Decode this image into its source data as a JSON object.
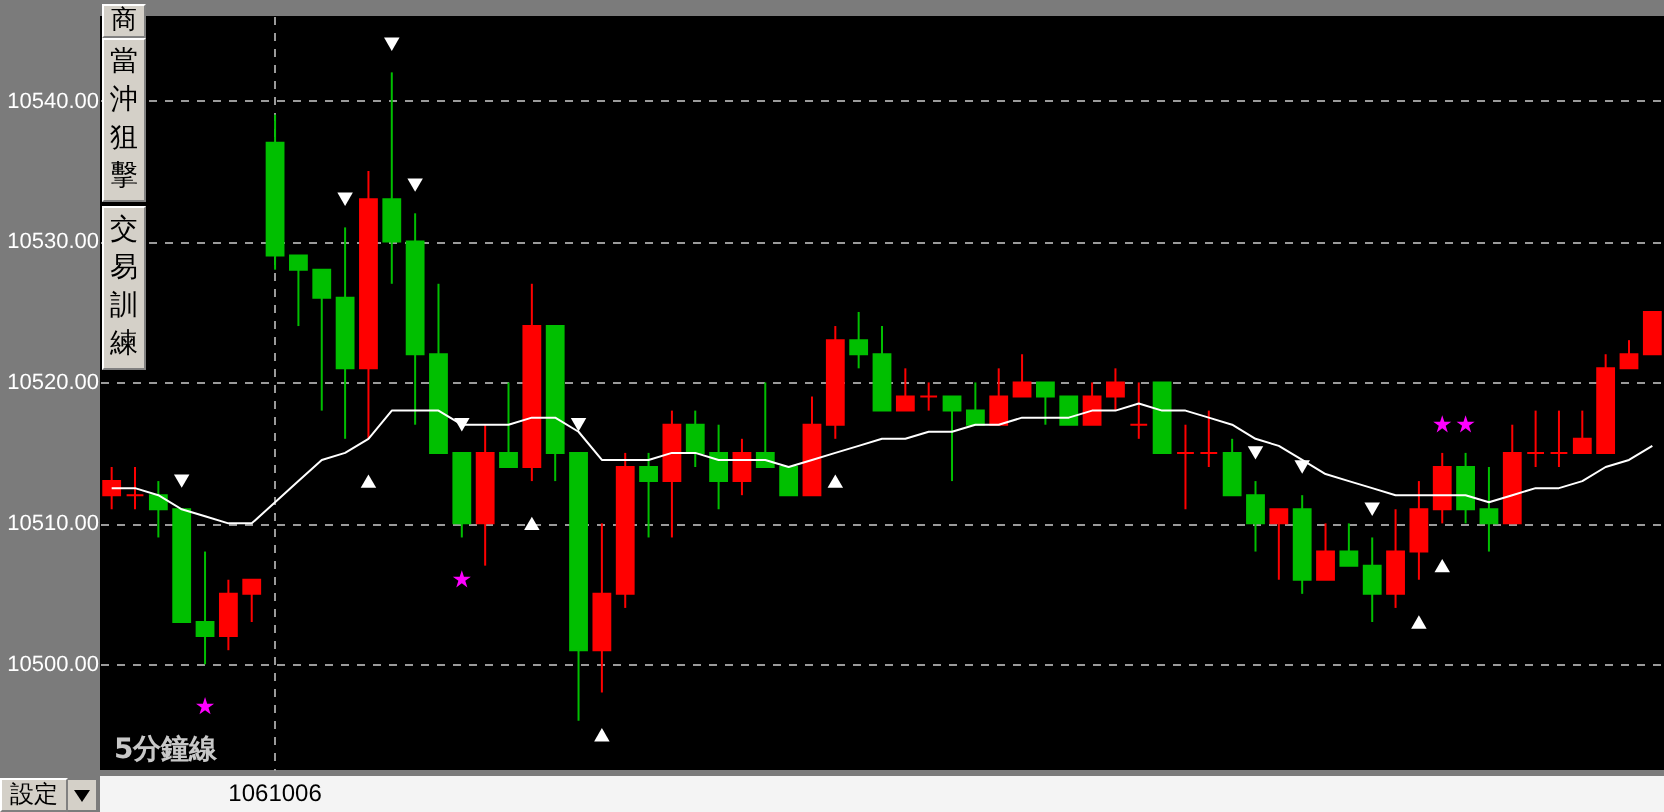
{
  "chart_data": {
    "type": "candlestick",
    "annotations": [
      "5分鐘線",
      "商",
      "當沖狙擊",
      "交易訓練",
      "設定"
    ],
    "categories": [
      null,
      null,
      null,
      null,
      null,
      null,
      null,
      "1061006",
      null,
      null,
      null,
      null,
      null,
      null,
      null,
      null,
      null,
      null,
      null,
      null,
      null,
      null,
      null,
      null,
      null,
      null,
      null,
      null,
      null,
      null,
      null,
      null,
      null,
      null,
      null,
      null,
      null,
      null,
      null,
      null,
      null,
      null,
      null,
      null,
      null,
      null,
      null,
      null,
      null,
      null,
      null,
      null,
      null,
      null,
      null,
      null,
      null,
      null,
      null,
      null,
      null,
      null,
      null,
      null,
      null,
      null,
      null
    ],
    "ohlc": [
      [
        10512,
        10514,
        10511,
        10513
      ],
      [
        10512,
        10514,
        10511,
        10512
      ],
      [
        10512,
        10513,
        10509,
        10511
      ],
      [
        10511,
        10511,
        10503,
        10503
      ],
      [
        10503,
        10508,
        10500,
        10502
      ],
      [
        10502,
        10506,
        10501,
        10505
      ],
      [
        10505,
        10506,
        10503,
        10506
      ],
      [
        10537,
        10539,
        10528,
        10529
      ],
      [
        10529,
        10529,
        10524,
        10528
      ],
      [
        10528,
        10528,
        10518,
        10526
      ],
      [
        10526,
        10531,
        10516,
        10521
      ],
      [
        10521,
        10535,
        10516,
        10533
      ],
      [
        10533,
        10542,
        10527,
        10530
      ],
      [
        10530,
        10532,
        10517,
        10522
      ],
      [
        10522,
        10527,
        10515,
        10515
      ],
      [
        10515,
        10515,
        10509,
        10510
      ],
      [
        10510,
        10517,
        10507,
        10515
      ],
      [
        10515,
        10520,
        10514,
        10514
      ],
      [
        10514,
        10527,
        10513,
        10524
      ],
      [
        10524,
        10524,
        10513,
        10515
      ],
      [
        10515,
        10515,
        10496,
        10501
      ],
      [
        10501,
        10510,
        10498,
        10505
      ],
      [
        10505,
        10515,
        10504,
        10514
      ],
      [
        10514,
        10515,
        10509,
        10513
      ],
      [
        10513,
        10518,
        10509,
        10517
      ],
      [
        10517,
        10518,
        10514,
        10515
      ],
      [
        10515,
        10517,
        10511,
        10513
      ],
      [
        10513,
        10516,
        10512,
        10515
      ],
      [
        10515,
        10520,
        10514,
        10514
      ],
      [
        10514,
        10514,
        10512,
        10512
      ],
      [
        10512,
        10519,
        10512,
        10517
      ],
      [
        10517,
        10524,
        10516,
        10523
      ],
      [
        10523,
        10525,
        10521,
        10522
      ],
      [
        10522,
        10524,
        10518,
        10518
      ],
      [
        10518,
        10521,
        10518,
        10519
      ],
      [
        10519,
        10520,
        10518,
        10519
      ],
      [
        10519,
        10519,
        10513,
        10518
      ],
      [
        10518,
        10520,
        10517,
        10517
      ],
      [
        10517,
        10521,
        10517,
        10519
      ],
      [
        10519,
        10522,
        10519,
        10520
      ],
      [
        10520,
        10520,
        10517,
        10519
      ],
      [
        10519,
        10519,
        10517,
        10517
      ],
      [
        10517,
        10520,
        10517,
        10519
      ],
      [
        10519,
        10521,
        10518,
        10520
      ],
      [
        10517,
        10520,
        10516,
        10517
      ],
      [
        10520,
        10520,
        10515,
        10515
      ],
      [
        10515,
        10517,
        10511,
        10515
      ],
      [
        10515,
        10518,
        10514,
        10515
      ],
      [
        10515,
        10516,
        10512,
        10512
      ],
      [
        10512,
        10513,
        10508,
        10510
      ],
      [
        10510,
        10511,
        10506,
        10511
      ],
      [
        10511,
        10512,
        10505,
        10506
      ],
      [
        10506,
        10510,
        10506,
        10508
      ],
      [
        10508,
        10510,
        10507,
        10507
      ],
      [
        10507,
        10509,
        10503,
        10505
      ],
      [
        10505,
        10511,
        10504,
        10508
      ],
      [
        10508,
        10513,
        10506,
        10511
      ],
      [
        10511,
        10515,
        10510,
        10514
      ],
      [
        10514,
        10515,
        10510,
        10511
      ],
      [
        10511,
        10514,
        10508,
        10510
      ],
      [
        10510,
        10517,
        10510,
        10515
      ],
      [
        10515,
        10518,
        10514,
        10515
      ],
      [
        10515,
        10518,
        10514,
        10515
      ],
      [
        10515,
        10518,
        10515,
        10516
      ],
      [
        10515,
        10522,
        10515,
        10521
      ],
      [
        10521,
        10523,
        10521,
        10522
      ],
      [
        10522,
        10525,
        10522,
        10525
      ]
    ],
    "colors": [
      "#ff0000",
      "#ff0000",
      "#00bf00",
      "#00bf00",
      "#00bf00",
      "#ff0000",
      "#ff0000",
      "#00bf00",
      "#00bf00",
      "#00bf00",
      "#00bf00",
      "#ff0000",
      "#00bf00",
      "#00bf00",
      "#00bf00",
      "#00bf00",
      "#ff0000",
      "#00bf00",
      "#ff0000",
      "#00bf00",
      "#00bf00",
      "#ff0000",
      "#ff0000",
      "#00bf00",
      "#ff0000",
      "#00bf00",
      "#00bf00",
      "#ff0000",
      "#00bf00",
      "#00bf00",
      "#ff0000",
      "#ff0000",
      "#00bf00",
      "#00bf00",
      "#ff0000",
      "#ff0000",
      "#00bf00",
      "#00bf00",
      "#ff0000",
      "#ff0000",
      "#00bf00",
      "#00bf00",
      "#ff0000",
      "#ff0000",
      "#ff0000",
      "#00bf00",
      "#ff0000",
      "#ff0000",
      "#00bf00",
      "#00bf00",
      "#ff0000",
      "#00bf00",
      "#ff0000",
      "#00bf00",
      "#00bf00",
      "#ff0000",
      "#ff0000",
      "#ff0000",
      "#00bf00",
      "#00bf00",
      "#ff0000",
      "#ff0000",
      "#ff0000",
      "#ff0000",
      "#ff0000",
      "#ff0000",
      "#ff0000"
    ],
    "series": [
      {
        "type": "line",
        "color": "#ffffff",
        "values": [
          10512.5,
          10512.5,
          10512,
          10511,
          10510.5,
          10510,
          10510,
          10511.5,
          10513,
          10514.5,
          10515,
          10516,
          10518,
          10518,
          10518,
          10517,
          10517,
          10517,
          10517.5,
          10517.5,
          10516.5,
          10514.5,
          10514.5,
          10514.5,
          10515,
          10515,
          10514.5,
          10514.5,
          10514.5,
          10514,
          10514.5,
          10515,
          10515.5,
          10516,
          10516,
          10516.5,
          10516.5,
          10517,
          10517,
          10517.5,
          10517.5,
          10517.5,
          10518,
          10518,
          10518.5,
          10518,
          10518,
          10517.5,
          10517,
          10516,
          10515.5,
          10514.5,
          10513.5,
          10513,
          10512.5,
          10512,
          10512,
          10512,
          10512,
          10511.5,
          10512,
          10512.5,
          10512.5,
          10513,
          10514,
          10514.5,
          10515.5
        ]
      },
      {
        "type": "scatter",
        "marker": "triangle-down",
        "color": "#ffffff",
        "values": [
          null,
          null,
          null,
          10513,
          null,
          null,
          null,
          null,
          null,
          null,
          10533,
          null,
          10544,
          10534,
          null,
          10517,
          null,
          null,
          null,
          null,
          10517,
          null,
          null,
          null,
          null,
          null,
          null,
          null,
          null,
          null,
          null,
          null,
          null,
          null,
          null,
          null,
          null,
          null,
          null,
          null,
          null,
          null,
          null,
          null,
          null,
          null,
          null,
          null,
          null,
          10515,
          null,
          10514,
          null,
          null,
          10511,
          null,
          null,
          null,
          null,
          null,
          null,
          null,
          null,
          null,
          null,
          null,
          null
        ]
      },
      {
        "type": "scatter",
        "marker": "triangle",
        "color": "#ffffff",
        "values": [
          null,
          null,
          null,
          null,
          null,
          null,
          null,
          null,
          null,
          null,
          null,
          10513,
          null,
          null,
          null,
          null,
          null,
          null,
          10510,
          null,
          null,
          10495,
          null,
          null,
          null,
          null,
          null,
          null,
          null,
          null,
          null,
          10513,
          null,
          null,
          null,
          null,
          null,
          null,
          null,
          null,
          null,
          null,
          null,
          null,
          null,
          null,
          null,
          null,
          null,
          null,
          null,
          null,
          null,
          null,
          null,
          null,
          10503,
          10507,
          null,
          null,
          null,
          null,
          null,
          null,
          null,
          null,
          null
        ]
      },
      {
        "type": "scatter",
        "marker": "star",
        "color": "#ff00ff",
        "values": [
          null,
          null,
          null,
          null,
          10497,
          null,
          null,
          null,
          null,
          null,
          null,
          null,
          null,
          null,
          null,
          10506,
          null,
          null,
          null,
          null,
          null,
          null,
          null,
          null,
          null,
          null,
          null,
          null,
          null,
          null,
          null,
          null,
          null,
          null,
          null,
          null,
          null,
          null,
          null,
          null,
          null,
          null,
          null,
          null,
          null,
          null,
          null,
          null,
          null,
          null,
          null,
          null,
          null,
          null,
          null,
          null,
          null,
          10517,
          10517,
          null,
          null,
          null,
          null,
          null,
          null,
          null,
          null
        ]
      }
    ],
    "ylim": [
      10492.5,
      10546
    ],
    "yticks": [
      {
        "value": 10500,
        "label": "10500.00"
      },
      {
        "value": 10510,
        "label": "10510.00"
      },
      {
        "value": 10520,
        "label": "10520.00"
      },
      {
        "value": 10530,
        "label": "10530.00"
      },
      {
        "value": 10540,
        "label": "10540.00"
      }
    ],
    "grid": true
  }
}
